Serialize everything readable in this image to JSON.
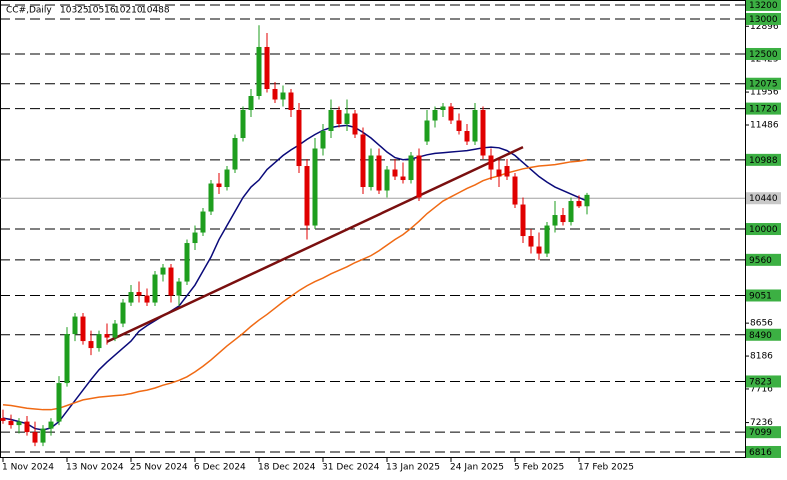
{
  "chart_data": {
    "type": "candlestick",
    "symbol": "CC#,Daily",
    "categories": [
      "1 Nov 2024",
      null,
      null,
      null,
      null,
      null,
      null,
      null,
      "13 Nov 2024",
      null,
      null,
      null,
      null,
      null,
      null,
      null,
      "25 Nov 2024",
      null,
      null,
      null,
      null,
      null,
      null,
      null,
      "6 Dec 2024",
      null,
      null,
      null,
      null,
      null,
      null,
      null,
      "18 Dec 2024",
      null,
      null,
      null,
      null,
      null,
      null,
      null,
      "31 Dec 2024",
      null,
      null,
      null,
      null,
      null,
      null,
      null,
      "13 Jan 2025",
      null,
      null,
      null,
      null,
      null,
      null,
      null,
      "24 Jan 2025",
      null,
      null,
      null,
      null,
      null,
      null,
      null,
      "5 Feb 2025",
      null,
      null,
      null,
      null,
      null,
      null,
      null,
      "17 Feb 2025",
      null
    ],
    "ohlc": [
      [
        7300,
        7420,
        7220,
        7260
      ],
      [
        7260,
        7350,
        7150,
        7200
      ],
      [
        7200,
        7300,
        7080,
        7250
      ],
      [
        7250,
        7330,
        7050,
        7100
      ],
      [
        7100,
        7250,
        6900,
        6950
      ],
      [
        6950,
        7200,
        6900,
        7150
      ],
      [
        7150,
        7300,
        7050,
        7250
      ],
      [
        7250,
        7900,
        7200,
        7800
      ],
      [
        7800,
        8600,
        7750,
        8500
      ],
      [
        8500,
        8800,
        8400,
        8750
      ],
      [
        8750,
        8800,
        8350,
        8400
      ],
      [
        8400,
        8550,
        8200,
        8300
      ],
      [
        8300,
        8550,
        8250,
        8500
      ],
      [
        8500,
        8650,
        8350,
        8450
      ],
      [
        8450,
        8700,
        8400,
        8650
      ],
      [
        8650,
        9000,
        8600,
        8950
      ],
      [
        8950,
        9200,
        8900,
        9100
      ],
      [
        9100,
        9250,
        8950,
        9050
      ],
      [
        9050,
        9150,
        8900,
        8950
      ],
      [
        8950,
        9400,
        8900,
        9350
      ],
      [
        9350,
        9500,
        9250,
        9450
      ],
      [
        9450,
        9500,
        8950,
        9050
      ],
      [
        9050,
        9300,
        8900,
        9250
      ],
      [
        9250,
        9850,
        9200,
        9800
      ],
      [
        9800,
        10050,
        9700,
        9950
      ],
      [
        9950,
        10300,
        9900,
        10250
      ],
      [
        10250,
        10700,
        10200,
        10650
      ],
      [
        10650,
        10800,
        10500,
        10600
      ],
      [
        10600,
        10900,
        10550,
        10850
      ],
      [
        10850,
        11350,
        10800,
        11300
      ],
      [
        11300,
        11750,
        11250,
        11700
      ],
      [
        11700,
        12000,
        11600,
        11900
      ],
      [
        11900,
        12910,
        11850,
        12600
      ],
      [
        12600,
        12800,
        11950,
        12000
      ],
      [
        12000,
        12100,
        11800,
        11850
      ],
      [
        11850,
        12050,
        11750,
        11950
      ],
      [
        11950,
        12000,
        11600,
        11700
      ],
      [
        11700,
        11800,
        10800,
        10900
      ],
      [
        10900,
        11000,
        9850,
        10050
      ],
      [
        10050,
        11300,
        10000,
        11150
      ],
      [
        11150,
        11500,
        11050,
        11400
      ],
      [
        11400,
        11850,
        11300,
        11700
      ],
      [
        11700,
        11750,
        11450,
        11500
      ],
      [
        11500,
        11850,
        11400,
        11650
      ],
      [
        11650,
        11700,
        11300,
        11350
      ],
      [
        11350,
        11450,
        10500,
        10600
      ],
      [
        10600,
        11150,
        10550,
        11050
      ],
      [
        11050,
        11150,
        10500,
        10550
      ],
      [
        10550,
        10900,
        10450,
        10850
      ],
      [
        10850,
        11000,
        10700,
        10750
      ],
      [
        10750,
        10950,
        10650,
        10700
      ],
      [
        10700,
        11100,
        10650,
        11050
      ],
      [
        11050,
        11150,
        10400,
        10450
      ],
      [
        11250,
        11700,
        11200,
        11550
      ],
      [
        11550,
        11750,
        11450,
        11700
      ],
      [
        11700,
        11800,
        11600,
        11750
      ],
      [
        11750,
        11800,
        11500,
        11550
      ],
      [
        11550,
        11650,
        11350,
        11400
      ],
      [
        11400,
        11500,
        11200,
        11250
      ],
      [
        11250,
        11800,
        11200,
        11700
      ],
      [
        11700,
        11750,
        11000,
        11050
      ],
      [
        11050,
        11150,
        10700,
        10850
      ],
      [
        10850,
        11000,
        10600,
        10750
      ],
      [
        10900,
        11000,
        10700,
        10750
      ],
      [
        10750,
        10800,
        10300,
        10350
      ],
      [
        10350,
        10450,
        9800,
        9900
      ],
      [
        9900,
        10000,
        9650,
        9750
      ],
      [
        9750,
        9950,
        9560,
        9650
      ],
      [
        9650,
        10100,
        9600,
        10050
      ],
      [
        10050,
        10400,
        9950,
        10200
      ],
      [
        10200,
        10300,
        10050,
        10100
      ],
      [
        10100,
        10450,
        10050,
        10400
      ],
      [
        10400,
        10480,
        10300,
        10325
      ],
      [
        10325,
        10516,
        10210,
        10488
      ]
    ],
    "up_color": "#1e9e1e",
    "down_color": "#e00000",
    "series": [
      {
        "color": "#0a0a7a",
        "values": [
          7300,
          7280,
          7250,
          7220,
          7150,
          7130,
          7160,
          7250,
          7400,
          7550,
          7700,
          7850,
          7990,
          8100,
          8200,
          8300,
          8400,
          8540,
          8620,
          8690,
          8760,
          8830,
          8900,
          9050,
          9200,
          9400,
          9600,
          9850,
          10050,
          10250,
          10450,
          10600,
          10700,
          10850,
          10950,
          11050,
          11130,
          11200,
          11280,
          11350,
          11410,
          11450,
          11470,
          11480,
          11450,
          11380,
          11300,
          11200,
          11100,
          11020,
          10990,
          11000,
          11030,
          11060,
          11080,
          11090,
          11100,
          11110,
          11120,
          11140,
          11160,
          11170,
          11160,
          11120,
          11050,
          10950,
          10850,
          10750,
          10670,
          10600,
          10550,
          10500,
          10450,
          10400
        ]
      },
      {
        "color": "#f06a14",
        "values": [
          7490,
          7480,
          7460,
          7440,
          7430,
          7420,
          7420,
          7440,
          7480,
          7520,
          7560,
          7580,
          7600,
          7610,
          7620,
          7630,
          7650,
          7680,
          7700,
          7730,
          7770,
          7800,
          7840,
          7890,
          7960,
          8040,
          8130,
          8230,
          8330,
          8420,
          8510,
          8610,
          8700,
          8780,
          8870,
          8960,
          9040,
          9120,
          9190,
          9250,
          9300,
          9360,
          9410,
          9460,
          9520,
          9570,
          9620,
          9690,
          9770,
          9850,
          9920,
          10010,
          10110,
          10220,
          10310,
          10400,
          10460,
          10520,
          10580,
          10630,
          10690,
          10730,
          10760,
          10800,
          10830,
          10860,
          10880,
          10900,
          10910,
          10920,
          10940,
          10960,
          10970,
          10990
        ]
      }
    ],
    "trendline": {
      "color": "#7a0f0f",
      "x": [
        13,
        65
      ],
      "values": [
        8390,
        11170
      ]
    },
    "levels": [
      13200,
      13000,
      12500,
      12075,
      11720,
      10988,
      10000,
      9560,
      9051,
      8490,
      7823,
      7099,
      6816
    ],
    "level_color": "#3cb043",
    "price_line": 10440,
    "ylim": [
      6730,
      13271
    ],
    "yticks": [
      12896,
      12425,
      11956,
      11486,
      8656,
      8186,
      7716,
      7236
    ]
  }
}
